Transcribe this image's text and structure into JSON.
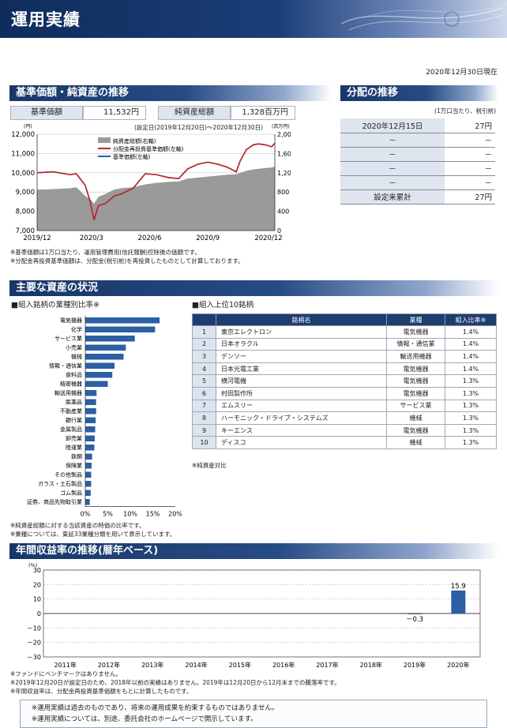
{
  "header": {
    "title": "運用実績",
    "as_of": "2020年12月30日現在"
  },
  "nav_section": {
    "title": "基準価額・純資産の推移",
    "nav_label": "基準価額",
    "nav_value": "11,532円",
    "assets_label": "純資産総額",
    "assets_value": "1,328百万円",
    "period": "(設定日(2019年12月20日)～2020年12月30日)",
    "notes": [
      "※基準価額は1万口当たり、運用管理費用(信託報酬)控除後の価額です。",
      "※分配金再投資基準価額は、分配金(税引前)を再投資したものとして計算しております。"
    ]
  },
  "chart_data": [
    {
      "type": "line",
      "left_unit": "(円)",
      "right_unit": "(百万円)",
      "y_ticks_left": [
        "12,000",
        "11,000",
        "10,000",
        "9,000",
        "8,000",
        "7,000"
      ],
      "y_ticks_right": [
        "2,000",
        "1,600",
        "1,200",
        "800",
        "400",
        "0"
      ],
      "ylim_left": [
        7000,
        12000
      ],
      "ylim_right": [
        0,
        2000
      ],
      "x_ticks": [
        "2019/12",
        "2020/3",
        "2020/6",
        "2020/9",
        "2020/12"
      ],
      "legend": [
        "純資産総額(右軸)",
        "分配金再投資基準価額(左軸)",
        "基準価額(左軸)"
      ],
      "legend_placement": "top-left",
      "grid": true,
      "colors": {
        "assets": "#9a9a9a",
        "reinvested": "#c2262e",
        "nav": "#1f5fa8"
      },
      "x_dates": [
        "2019-12-20",
        "2020-01-15",
        "2020-02-10",
        "2020-02-20",
        "2020-03-05",
        "2020-03-13",
        "2020-03-19",
        "2020-03-26",
        "2020-04-06",
        "2020-04-20",
        "2020-05-01",
        "2020-05-20",
        "2020-06-08",
        "2020-06-26",
        "2020-07-15",
        "2020-07-31",
        "2020-08-14",
        "2020-08-31",
        "2020-09-15",
        "2020-09-30",
        "2020-10-15",
        "2020-10-30",
        "2020-11-05",
        "2020-11-15",
        "2020-11-26",
        "2020-12-04",
        "2020-12-15",
        "2020-12-25",
        "2020-12-30"
      ],
      "nav_values": [
        10000,
        10050,
        9900,
        9950,
        9350,
        8500,
        7550,
        8300,
        8400,
        8800,
        8900,
        9200,
        9950,
        9900,
        9750,
        9700,
        10200,
        10450,
        10550,
        10450,
        10300,
        10050,
        10600,
        11200,
        11450,
        11500,
        11450,
        11350,
        11532
      ],
      "assets_values": [
        850,
        860,
        880,
        900,
        720,
        650,
        560,
        700,
        760,
        850,
        880,
        900,
        960,
        990,
        1010,
        1020,
        1080,
        1100,
        1120,
        1140,
        1160,
        1170,
        1200,
        1240,
        1270,
        1280,
        1300,
        1310,
        1328
      ]
    },
    {
      "type": "bar",
      "title": "■組入銘柄の業種別比率※",
      "orientation": "horizontal",
      "categories": [
        "電気機器",
        "化学",
        "サービス業",
        "小売業",
        "機械",
        "情報・通信業",
        "食料品",
        "精密機器",
        "輸送用機器",
        "医薬品",
        "不動産業",
        "銀行業",
        "金属製品",
        "卸売業",
        "陸運業",
        "鉄鋼",
        "保険業",
        "その他製品",
        "ガラス・土石製品",
        "ゴム製品",
        "証券、商品先物取引業"
      ],
      "values": [
        16.5,
        15.5,
        11.0,
        9.0,
        8.5,
        6.5,
        6.0,
        5.0,
        2.5,
        2.4,
        2.4,
        2.3,
        2.2,
        2.1,
        2.0,
        1.5,
        1.4,
        1.3,
        1.3,
        1.2,
        1.0
      ],
      "x_ticks": [
        "0%",
        "5%",
        "10%",
        "15%",
        "20%"
      ],
      "xlim": [
        0,
        20
      ],
      "color": "#2c5fa3"
    },
    {
      "type": "bar",
      "title": "年間収益率の推移(暦年ベース)",
      "unit": "(%)",
      "categories": [
        "2011年",
        "2012年",
        "2013年",
        "2014年",
        "2015年",
        "2016年",
        "2017年",
        "2018年",
        "2019年",
        "2020年"
      ],
      "values": [
        null,
        null,
        null,
        null,
        null,
        null,
        null,
        null,
        -0.3,
        15.9
      ],
      "value_labels": [
        "",
        "",
        "",
        "",
        "",
        "",
        "",
        "",
        "－0.3",
        "15.9"
      ],
      "y_ticks": [
        "30",
        "20",
        "10",
        "0",
        "－10",
        "－20",
        "－30"
      ],
      "ylim": [
        -30,
        30
      ],
      "color": "#2c5fa3"
    }
  ],
  "distribution": {
    "title": "分配の推移",
    "unit": "(1万口当たり、税引前)",
    "rows": [
      {
        "date": "2020年12月15日",
        "amount": "27円"
      },
      {
        "date": "－",
        "amount": "－"
      },
      {
        "date": "－",
        "amount": "－"
      },
      {
        "date": "－",
        "amount": "－"
      },
      {
        "date": "－",
        "amount": "－"
      }
    ],
    "total_label": "設定来累計",
    "total_amount": "27円"
  },
  "assets_section": {
    "title": "主要な資産の状況",
    "top10_title": "■組入上位10銘柄",
    "columns": [
      "銘柄名",
      "業種",
      "組入比率※"
    ],
    "rows": [
      {
        "rank": "1",
        "name": "東京エレクトロン",
        "industry": "電気機器",
        "ratio": "1.4%"
      },
      {
        "rank": "2",
        "name": "日本オラクル",
        "industry": "情報・通信業",
        "ratio": "1.4%"
      },
      {
        "rank": "3",
        "name": "デンソー",
        "industry": "輸送用機器",
        "ratio": "1.4%"
      },
      {
        "rank": "4",
        "name": "日本光電工業",
        "industry": "電気機器",
        "ratio": "1.4%"
      },
      {
        "rank": "5",
        "name": "横河電機",
        "industry": "電気機器",
        "ratio": "1.3%"
      },
      {
        "rank": "6",
        "name": "村田製作所",
        "industry": "電気機器",
        "ratio": "1.3%"
      },
      {
        "rank": "7",
        "name": "エムスリー",
        "industry": "サービス業",
        "ratio": "1.3%"
      },
      {
        "rank": "8",
        "name": "ハーモニック・ドライブ・システムズ",
        "industry": "機械",
        "ratio": "1.3%"
      },
      {
        "rank": "9",
        "name": "キーエンス",
        "industry": "電気機器",
        "ratio": "1.3%"
      },
      {
        "rank": "10",
        "name": "ディスコ",
        "industry": "機械",
        "ratio": "1.3%"
      }
    ],
    "top10_note": "※純資産対比",
    "notes": [
      "※純資産総額に対する当該資産の時価の比率です。",
      "※業種については、東証33業種分類を用いて表示しています。"
    ]
  },
  "returns_section": {
    "title": "年間収益率の推移(暦年ベース)",
    "notes": [
      "※ファンドにベンチマークはありません。",
      "※2019年12月20日が設定日のため、2018年以前の実績はありません。2019年は12月20日から12月末までの騰落率です。",
      "※年間収益率は、分配金再投資基準価額をもとに計算したものです。"
    ]
  },
  "disclaimer": [
    "※運用実績は過去のものであり、将来の運用成果を約束するものではありません。",
    "※運用実績については、別途、委託会社のホームページで開示しています。"
  ]
}
